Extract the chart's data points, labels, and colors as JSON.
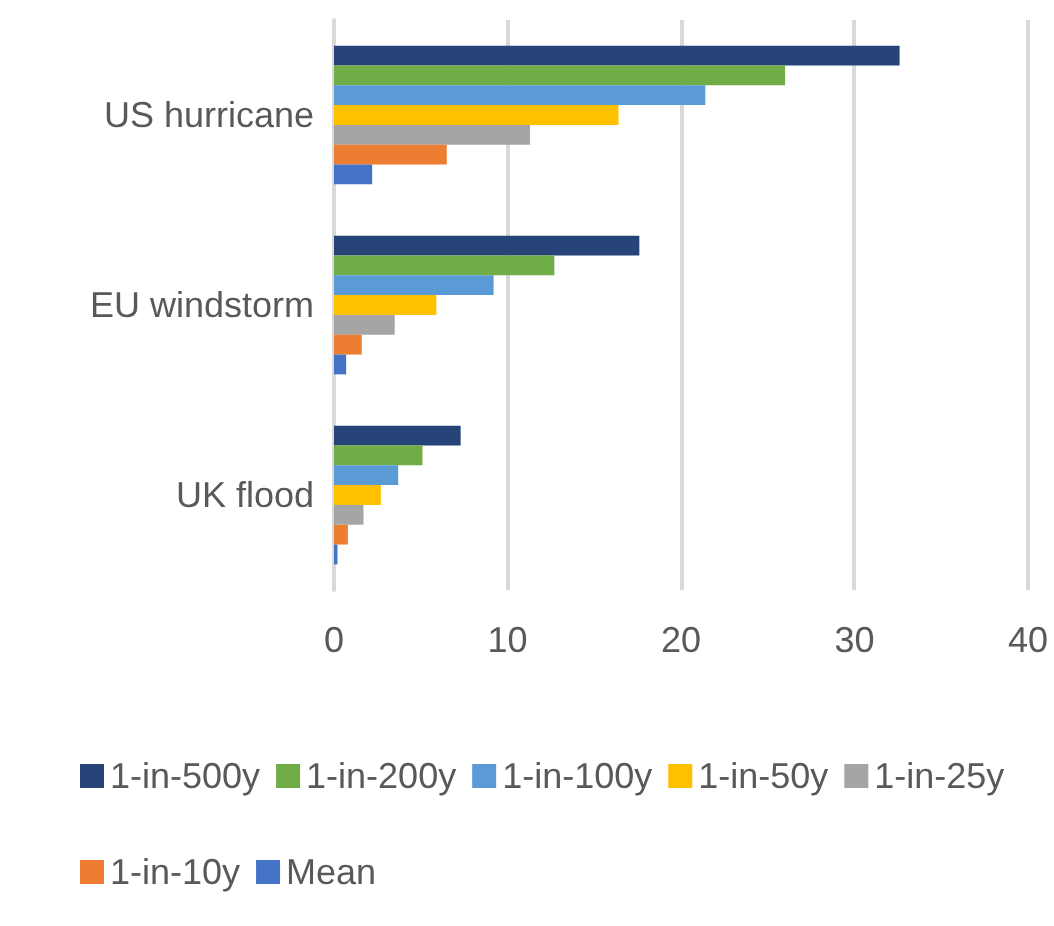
{
  "chart_data": {
    "type": "bar",
    "orientation": "horizontal",
    "categories": [
      "US hurricane",
      "EU windstorm",
      "UK flood"
    ],
    "series": [
      {
        "name": "1-in-500y",
        "color": "#264478",
        "values": [
          32.6,
          17.6,
          7.3
        ]
      },
      {
        "name": "1-in-200y",
        "color": "#70ad47",
        "values": [
          26.0,
          12.7,
          5.1
        ]
      },
      {
        "name": "1-in-100y",
        "color": "#5b9bd5",
        "values": [
          21.4,
          9.2,
          3.7
        ]
      },
      {
        "name": "1-in-50y",
        "color": "#ffc000",
        "values": [
          16.4,
          5.9,
          2.7
        ]
      },
      {
        "name": "1-in-25y",
        "color": "#a5a5a5",
        "values": [
          11.3,
          3.5,
          1.7
        ]
      },
      {
        "name": "1-in-10y",
        "color": "#ed7d31",
        "values": [
          6.5,
          1.6,
          0.8
        ]
      },
      {
        "name": "Mean",
        "color": "#4472c4",
        "values": [
          2.2,
          0.7,
          0.2
        ]
      }
    ],
    "xlim": [
      0,
      40
    ],
    "xticks": [
      0,
      10,
      20,
      30,
      40
    ],
    "grid": "x",
    "legend": "bottom"
  }
}
